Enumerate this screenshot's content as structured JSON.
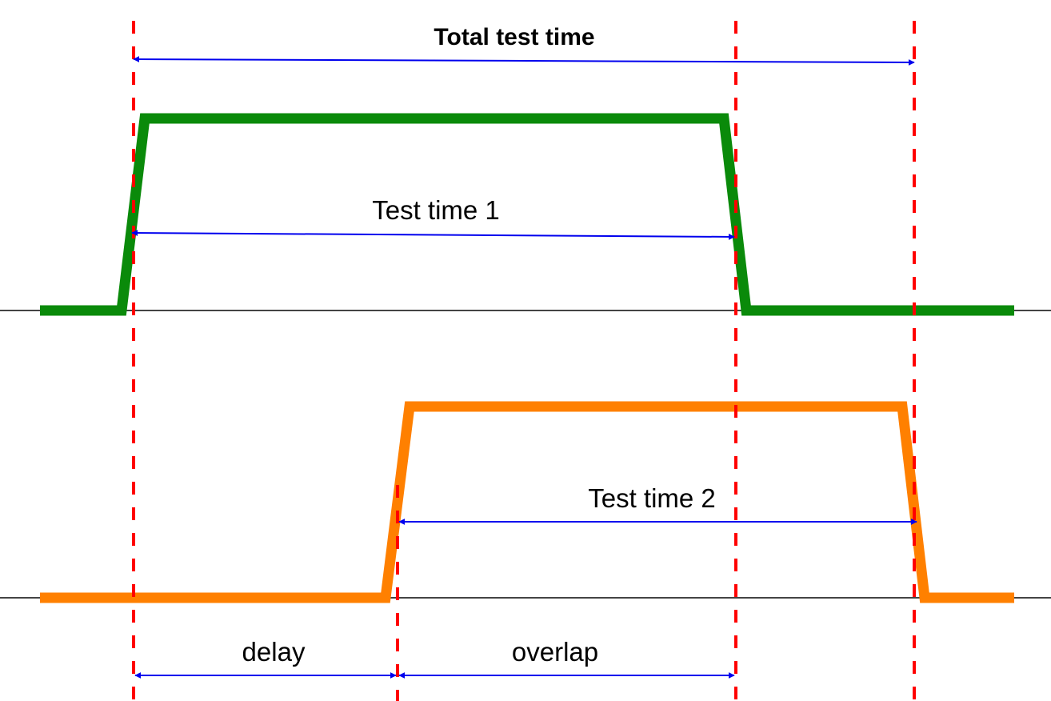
{
  "labels": {
    "total": "Total test time",
    "test1": "Test time 1",
    "test2": "Test time 2",
    "delay": "delay",
    "overlap": "overlap"
  },
  "colors": {
    "signal_1": "#0a8a0a",
    "signal_2": "#ff8000",
    "markers": "#ff0000",
    "arrows": "#0000ee",
    "baseline": "#444444"
  }
}
